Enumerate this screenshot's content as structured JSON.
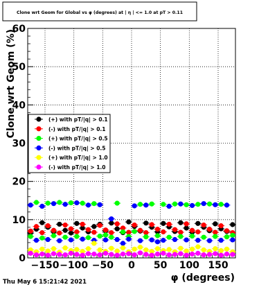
{
  "chart_data": {
    "type": "scatter",
    "title": "Clone wrt Geom for Global vs φ (degrees) at | η | <= 1.0 at pT > 0.11",
    "xlabel": "φ (degrees)",
    "ylabel": "Clone wrt Geom (%)",
    "xlim": [
      -180,
      180
    ],
    "ylim": [
      0,
      60
    ],
    "x_ticks": [
      "−150",
      "−100",
      "−50",
      "0",
      "50",
      "100",
      "150"
    ],
    "y_ticks": [
      "0",
      "10",
      "20",
      "30",
      "40",
      "50",
      "60"
    ],
    "grid": true,
    "legend_position": "left-middle",
    "x": [
      -175,
      -165,
      -155,
      -145,
      -135,
      -125,
      -115,
      -105,
      -95,
      -85,
      -75,
      -65,
      -55,
      -45,
      -35,
      -25,
      -15,
      -5,
      5,
      15,
      25,
      35,
      45,
      55,
      65,
      75,
      85,
      95,
      105,
      115,
      125,
      135,
      145,
      155,
      165,
      175
    ],
    "series": [
      {
        "name": "(+) with pT/|q| > 0.1",
        "color": "#000000",
        "values": [
          6.5,
          7.5,
          9.2,
          8.0,
          6.8,
          8.8,
          7.2,
          6.5,
          9.0,
          7.8,
          6.8,
          8.2,
          8.8,
          7.0,
          9.1,
          7.6,
          6.6,
          9.4,
          8.2,
          7.0,
          9.1,
          8.0,
          6.8,
          9.0,
          8.1,
          6.9,
          9.2,
          7.8,
          6.7,
          9.0,
          8.0,
          7.1,
          8.9,
          7.6,
          6.9,
          8.7
        ]
      },
      {
        "name": "(-) with pT/|q| > 0.1",
        "color": "#ff0000",
        "values": [
          7.0,
          8.2,
          6.6,
          8.4,
          7.2,
          6.5,
          8.6,
          7.6,
          6.8,
          8.8,
          7.4,
          6.7,
          8.5,
          7.3,
          6.6,
          8.9,
          7.8,
          6.7,
          8.6,
          7.2,
          6.6,
          8.7,
          7.5,
          6.8,
          8.8,
          7.4,
          6.7,
          8.9,
          7.2,
          6.8,
          8.6,
          7.5,
          6.7,
          8.4,
          7.1,
          6.6
        ]
      },
      {
        "name": "(+) with pT/|q| > 0.5",
        "color": "#00ff00",
        "values": [
          5.6,
          14.5,
          5.2,
          14.3,
          5.8,
          14.5,
          5.4,
          14.4,
          5.6,
          14.3,
          5.3,
          14.2,
          5.7,
          6.0,
          5.4,
          14.3,
          6.8,
          5.6,
          6.9,
          14.0,
          5.5,
          14.1,
          5.8,
          14.0,
          5.4,
          14.1,
          5.6,
          13.9,
          5.7,
          14.0,
          5.4,
          14.1,
          5.6,
          14.0,
          5.5,
          5.9
        ]
      },
      {
        "name": "(-) with pT/|q| > 0.5",
        "color": "#0000ff",
        "values": [
          13.8,
          4.6,
          13.5,
          4.8,
          14.2,
          4.5,
          14.0,
          4.7,
          14.4,
          4.9,
          13.8,
          4.6,
          13.9,
          4.7,
          10.2,
          4.8,
          3.8,
          4.9,
          13.6,
          4.5,
          13.8,
          4.7,
          4.2,
          4.6,
          13.5,
          4.8,
          14.1,
          4.7,
          13.7,
          4.6,
          14.2,
          4.5,
          13.9,
          4.6,
          13.8,
          4.7
        ]
      },
      {
        "name": "(+) with pT/|q| > 1.0",
        "color": "#ffff00",
        "values": [
          2.1,
          1.6,
          2.3,
          1.8,
          2.4,
          1.5,
          2.6,
          1.9,
          2.2,
          1.7,
          2.4,
          3.8,
          2.1,
          1.7,
          2.5,
          1.8,
          2.6,
          1.6,
          2.3,
          2.8,
          2.1,
          1.7,
          2.4,
          1.9,
          2.2,
          1.6,
          2.5,
          1.8,
          2.3,
          2.9,
          2.1,
          1.7,
          2.4,
          1.9,
          2.3,
          1.6
        ]
      },
      {
        "name": "(-) with pT/|q| > 1.0",
        "color": "#ff00ff",
        "values": [
          1.2,
          0.8,
          1.0,
          0.7,
          1.1,
          0.9,
          0.8,
          1.2,
          0.9,
          0.7,
          1.1,
          1.0,
          0.8,
          1.2,
          0.9,
          0.7,
          1.0,
          1.1,
          0.8,
          1.3,
          0.9,
          0.7,
          1.0,
          1.2,
          0.8,
          0.9,
          1.1,
          0.7,
          1.0,
          1.2,
          0.8,
          0.9,
          1.1,
          0.7,
          1.0,
          0.9
        ]
      }
    ]
  },
  "footer": {
    "timestamp": "Thu May  6 15:21:42 2021"
  }
}
